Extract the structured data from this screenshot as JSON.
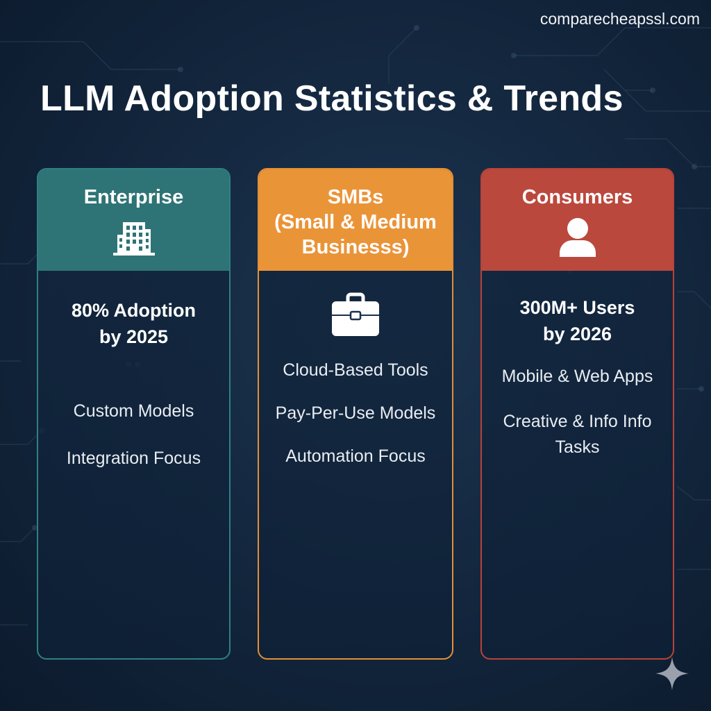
{
  "site": "comparecheapssl.com",
  "title": "LLM Adoption Statistics & Trends",
  "colors": {
    "enterprise": "#2e7476",
    "smb": "#ea9438",
    "consumers": "#bb483d",
    "background": "#142840"
  },
  "cards": [
    {
      "label": "Enterprise",
      "icon": "building-icon",
      "stat_lines": [
        "80% Adoption",
        "by 2025"
      ],
      "items": [
        "Custom Models",
        "Integration Focus"
      ]
    },
    {
      "label_lines": [
        "SMBs",
        "(Small & Medium",
        "Businesss)"
      ],
      "icon": "briefcase-icon",
      "items": [
        "Cloud-Based Tools",
        "Pay-Per-Use Models",
        "Automation Focus"
      ]
    },
    {
      "label": "Consumers",
      "icon": "user-icon",
      "stat_lines": [
        "300M+ Users",
        "by 2026"
      ],
      "items": [
        "Mobile & Web Apps",
        "Creative & Info Info Tasks"
      ]
    }
  ]
}
